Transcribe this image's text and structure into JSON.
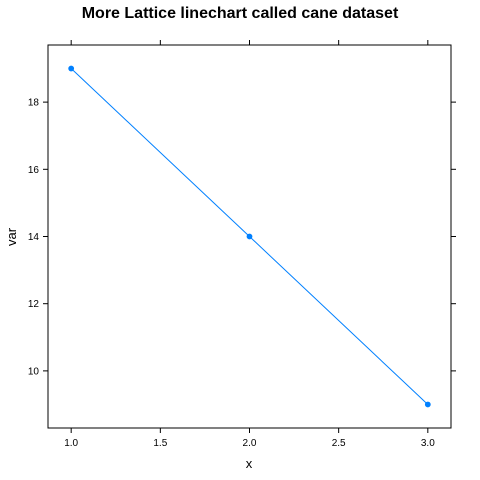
{
  "chart_data": {
    "type": "line",
    "title": "More Lattice linechart called cane dataset",
    "xlabel": "x",
    "ylabel": "var",
    "x": [
      1.0,
      2.0,
      3.0
    ],
    "series": [
      {
        "values": [
          19,
          14,
          9
        ]
      }
    ],
    "xlim": [
      0.87,
      3.13
    ],
    "ylim": [
      8.3,
      19.7
    ],
    "xticks": [
      "1.0",
      "1.5",
      "2.0",
      "2.5",
      "3.0"
    ],
    "xtick_values": [
      1.0,
      1.5,
      2.0,
      2.5,
      3.0
    ],
    "yticks": [
      "10",
      "12",
      "14",
      "16",
      "18"
    ],
    "ytick_values": [
      10,
      12,
      14,
      16,
      18
    ],
    "grid": false,
    "line_color": "#0080ff",
    "frame_color": "#000000"
  }
}
